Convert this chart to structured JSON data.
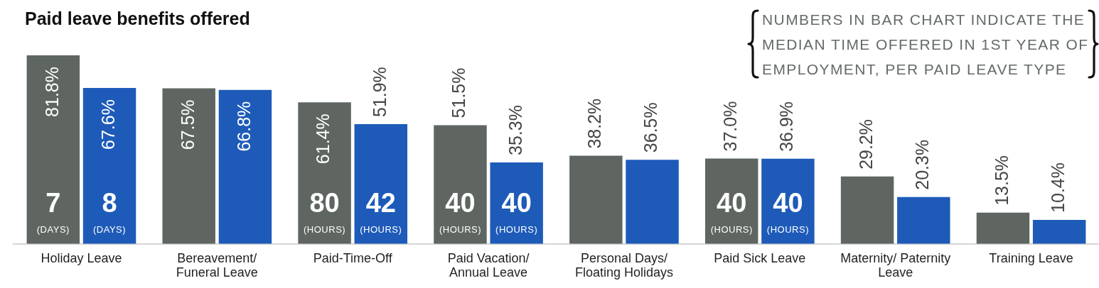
{
  "chart_data": {
    "type": "bar",
    "title": "Paid leave benefits offered",
    "categories": [
      "Holiday Leave",
      "Bereavement/ Funeral Leave",
      "Paid-Time-Off",
      "Paid Vacation/ Annual Leave",
      "Personal Days/ Floating Holidays",
      "Paid Sick Leave",
      "Maternity/ Paternity Leave",
      "Training Leave"
    ],
    "series": [
      {
        "color": "#5f6661",
        "values": [
          81.8,
          67.5,
          61.4,
          51.5,
          38.2,
          37.0,
          29.2,
          13.5
        ],
        "value_labels": [
          "81.8%",
          "67.5%",
          "61.4%",
          "51.5%",
          "38.2%",
          "37.0%",
          "29.2%",
          "13.5%"
        ]
      },
      {
        "color": "#1e5bb9",
        "values": [
          67.6,
          66.8,
          51.9,
          35.3,
          36.5,
          36.9,
          20.3,
          10.4
        ],
        "value_labels": [
          "67.6%",
          "66.8%",
          "51.9%",
          "35.3%",
          "36.5%",
          "36.9%",
          "20.3%",
          "10.4%"
        ]
      }
    ],
    "annotations": [
      "NUMBERS IN BAR CHART INDICATE THE MEDIAN TIME OFFERED IN 1ST YEAR OF EMPLOYMENT, PER PAID LEAVE TYPE",
      {
        "text": "7 (DAYS)",
        "x": "Holiday Leave",
        "y": 12
      },
      {
        "text": "8 (DAYS)",
        "x": "Holiday Leave",
        "y": 12
      },
      {
        "text": "80 (HOURS)",
        "x": "Paid-Time-Off",
        "y": 12
      },
      {
        "text": "42 (HOURS)",
        "x": "Paid-Time-Off",
        "y": 12
      },
      {
        "text": "40 (HOURS)",
        "x": "Paid Vacation/ Annual Leave",
        "y": 12
      },
      {
        "text": "40 (HOURS)",
        "x": "Paid Vacation/ Annual Leave",
        "y": 12
      },
      {
        "text": "40 (HOURS)",
        "x": "Paid Sick Leave",
        "y": 12
      },
      {
        "text": "40 (HOURS)",
        "x": "Paid Sick Leave",
        "y": 12
      }
    ],
    "legend": false,
    "grid": false
  }
}
